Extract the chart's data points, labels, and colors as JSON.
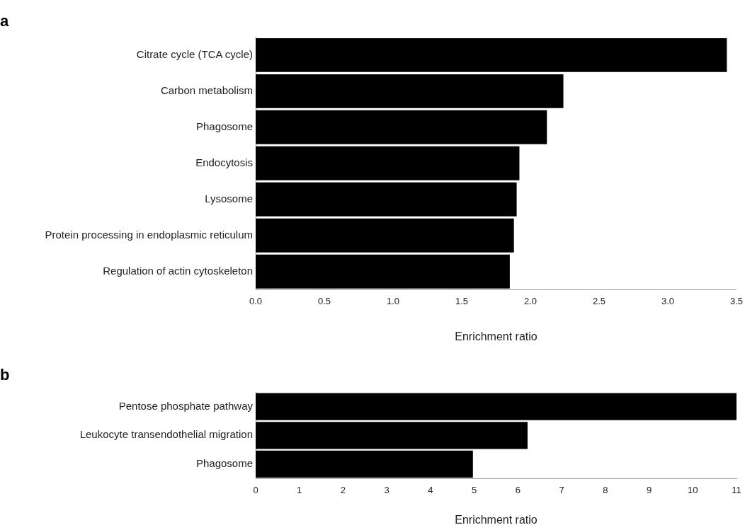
{
  "chart_data": [
    {
      "type": "bar",
      "orientation": "horizontal",
      "title": "a",
      "xlabel": "Enrichment ratio",
      "categories": [
        "Citrate cycle (TCA cycle)",
        "Carbon metabolism",
        "Phagosome",
        "Endocytosis",
        "Lysosome",
        "Protein processing in endoplasmic reticulum",
        "Regulation of actin cytoskeleton"
      ],
      "values": [
        3.43,
        2.24,
        2.12,
        1.92,
        1.9,
        1.88,
        1.85
      ],
      "color": "#000000",
      "xlim": [
        0,
        3.5
      ],
      "xticks": [
        {
          "value": 0,
          "label": "0.0"
        },
        {
          "value": 0.5,
          "label": "0.5"
        },
        {
          "value": 1,
          "label": "1.0"
        },
        {
          "value": 1.5,
          "label": "1.5"
        },
        {
          "value": 2,
          "label": "2.0"
        },
        {
          "value": 2.5,
          "label": "2.5"
        },
        {
          "value": 3,
          "label": "3.0"
        },
        {
          "value": 3.5,
          "label": "3.5"
        }
      ],
      "grid": false
    },
    {
      "type": "bar",
      "orientation": "horizontal",
      "title": "b",
      "xlabel": "Enrichment ratio",
      "categories": [
        "Pentose phosphate pathway",
        "Leukocyte transendothelial migration",
        "Phagosome"
      ],
      "values": [
        11,
        6.22,
        4.97
      ],
      "color": "#000000",
      "xlim": [
        0,
        11
      ],
      "xticks": [
        0,
        1,
        2,
        3,
        4,
        5,
        6,
        7,
        8,
        9,
        10,
        11
      ],
      "grid": false
    }
  ]
}
